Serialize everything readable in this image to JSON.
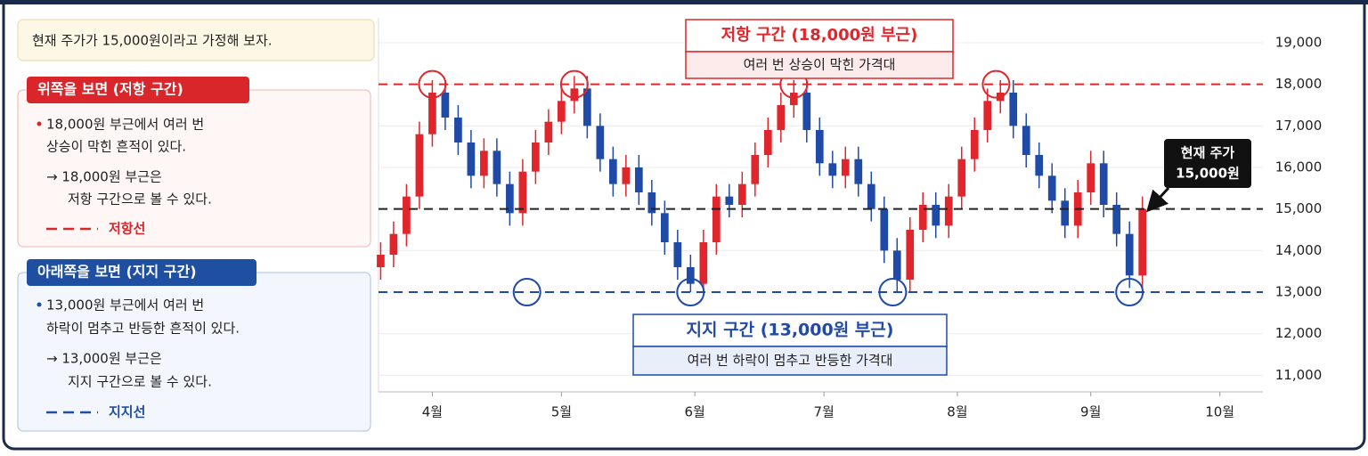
{
  "notes": {
    "intro": "현재 주가가 15,000원이라고 가정해 보자.",
    "resistance": {
      "title": "위쪽을 보면 (저항 구간)",
      "lines": [
        "18,000원 부근에서 여러 번",
        "상승이 막힌 흔적이 있다.",
        "→ 18,000원 부근은",
        "저항 구간으로 볼 수 있다."
      ],
      "legend": "저항선"
    },
    "support": {
      "title": "아래쪽을 보면 (지지 구간)",
      "lines": [
        "13,000원 부근에서 여러 번",
        "하락이 멈추고 반등한 흔적이 있다.",
        "→ 13,000원 부근은",
        "지지 구간으로 볼 수 있다."
      ],
      "legend": "지지선"
    }
  },
  "chart_data": {
    "type": "candlestick",
    "up_color": "#e0262c",
    "down_color": "#1f4aa8",
    "grid": true,
    "x": [
      -12,
      -9,
      -6,
      -3,
      0,
      3,
      6,
      9,
      12,
      15,
      18,
      21,
      24,
      27,
      30,
      33,
      36,
      39,
      42,
      45,
      48,
      51,
      54,
      57,
      60,
      63,
      66,
      69,
      72,
      75,
      78,
      81,
      84,
      87,
      90,
      93,
      96,
      99,
      102,
      105,
      108,
      111,
      114,
      117,
      120,
      123,
      126,
      129,
      132,
      135,
      138,
      141,
      144,
      147,
      150,
      153,
      156,
      159,
      162,
      165
    ],
    "open": [
      13600,
      13900,
      14400,
      15300,
      16800,
      17800,
      17200,
      16600,
      15800,
      16400,
      15600,
      14900,
      15900,
      16600,
      17100,
      17600,
      17900,
      17000,
      16200,
      15600,
      16000,
      15400,
      14900,
      14200,
      13600,
      13200,
      14200,
      15300,
      15100,
      15600,
      16300,
      16900,
      17500,
      17800,
      16900,
      16100,
      15800,
      16200,
      15600,
      15000,
      14000,
      13300,
      14500,
      15100,
      14600,
      15300,
      16200,
      16900,
      17600,
      17800,
      17000,
      16300,
      15800,
      15200,
      14600,
      15400,
      16100,
      15100,
      14400,
      13400
    ],
    "high": [
      14200,
      14700,
      15600,
      17100,
      18100,
      18100,
      17500,
      16900,
      16700,
      16700,
      15900,
      16200,
      16900,
      17400,
      17900,
      18200,
      18200,
      17300,
      16500,
      16300,
      16300,
      15700,
      15200,
      14500,
      13900,
      14500,
      15600,
      15600,
      15900,
      16600,
      17200,
      17800,
      18100,
      18100,
      17200,
      16400,
      16500,
      16500,
      15900,
      15300,
      14300,
      14800,
      15400,
      15400,
      15600,
      16500,
      17200,
      17900,
      18100,
      18100,
      17300,
      16600,
      16100,
      15500,
      15700,
      16400,
      16400,
      15400,
      14700,
      15300
    ],
    "low": [
      13300,
      13600,
      14100,
      15000,
      16500,
      16900,
      16300,
      15500,
      15500,
      15300,
      14600,
      14600,
      15600,
      16300,
      16800,
      17300,
      16700,
      15900,
      15300,
      15300,
      15100,
      14600,
      13900,
      13300,
      13000,
      13000,
      13900,
      14800,
      14800,
      15300,
      16000,
      16600,
      17200,
      16600,
      15800,
      15500,
      15500,
      15300,
      14700,
      13700,
      13000,
      13000,
      14200,
      14300,
      14300,
      15000,
      15900,
      16600,
      17300,
      16700,
      16000,
      15500,
      14900,
      14300,
      14300,
      15100,
      14800,
      14100,
      13100,
      13100
    ],
    "close": [
      13900,
      14400,
      15300,
      16800,
      17800,
      17200,
      16600,
      15800,
      16400,
      15600,
      14900,
      15900,
      16600,
      17100,
      17600,
      17900,
      17000,
      16200,
      15600,
      16000,
      15400,
      14900,
      14200,
      13600,
      13200,
      14200,
      15300,
      15100,
      15600,
      16300,
      16900,
      17500,
      17800,
      16900,
      16100,
      15800,
      16200,
      15600,
      15000,
      14000,
      13300,
      14500,
      15100,
      14600,
      15300,
      16200,
      16900,
      17600,
      17800,
      17000,
      16300,
      15800,
      15200,
      14600,
      15400,
      16100,
      15100,
      14400,
      13400,
      15000
    ],
    "xlim": [
      -12.5,
      193
    ],
    "xticks": [
      {
        "value": 0,
        "label": "4월"
      },
      {
        "value": 30,
        "label": "5월"
      },
      {
        "value": 61,
        "label": "6월"
      },
      {
        "value": 91,
        "label": "7월"
      },
      {
        "value": 122,
        "label": "8월"
      },
      {
        "value": 153,
        "label": "9월"
      },
      {
        "value": 183,
        "label": "10월"
      }
    ],
    "ylim": [
      10600,
      19600
    ],
    "yticks": [
      {
        "value": 11000,
        "label": "11,000"
      },
      {
        "value": 12000,
        "label": "12,000"
      },
      {
        "value": 13000,
        "label": "13,000"
      },
      {
        "value": 14000,
        "label": "14,000"
      },
      {
        "value": 15000,
        "label": "15,000"
      },
      {
        "value": 16000,
        "label": "16,000"
      },
      {
        "value": 17000,
        "label": "17,000"
      },
      {
        "value": 18000,
        "label": "18,000"
      },
      {
        "value": 19000,
        "label": "19,000"
      }
    ],
    "resistance_level": 18000,
    "resistance_color": "#e0262c",
    "resistance_touches": [
      0,
      33,
      84,
      131
    ],
    "support_level": 13000,
    "support_color": "#1f4aa8",
    "support_touches": [
      22,
      60,
      107,
      162
    ],
    "current_price": 15000,
    "resistance_title": "저항 구간 (18,000원 부근)",
    "resistance_subtitle": "여러 번 상승이 막힌 가격대",
    "support_title": "지지 구간 (13,000원 부근)",
    "support_subtitle": "여러 번 하락이 멈추고 반등한 가격대",
    "current_label": [
      "현재 주가",
      "15,000원"
    ]
  }
}
